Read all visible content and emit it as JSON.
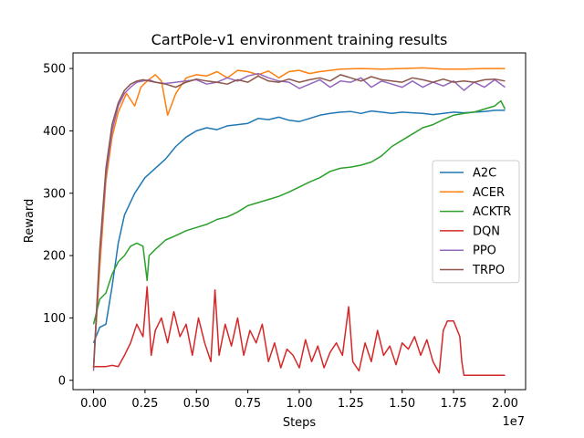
{
  "chart_data": {
    "type": "line",
    "title": "CartPole-v1 environment training results",
    "xlabel": "Steps",
    "ylabel": "Reward",
    "x_offset_label": "1e7",
    "xlim": [
      -1.0,
      21.0
    ],
    "ylim": [
      -15,
      525
    ],
    "x_unit": "millions of steps",
    "xticks": [
      0,
      2.5,
      5,
      7.5,
      10,
      12.5,
      15,
      17.5,
      20
    ],
    "xtick_labels": [
      "0.00",
      "0.25",
      "0.50",
      "0.75",
      "1.00",
      "1.25",
      "1.50",
      "1.75",
      "2.00"
    ],
    "yticks": [
      0,
      100,
      200,
      300,
      400,
      500
    ],
    "ytick_labels": [
      "0",
      "100",
      "200",
      "300",
      "400",
      "500"
    ],
    "legend_position": "center-right",
    "grid": false,
    "series": [
      {
        "name": "A2C",
        "color": "#1f77b4",
        "x": [
          0,
          0.3,
          0.6,
          0.9,
          1.2,
          1.5,
          2.0,
          2.5,
          3.0,
          3.5,
          4.0,
          4.5,
          5.0,
          5.5,
          6.0,
          6.5,
          7.0,
          7.5,
          8.0,
          8.5,
          9.0,
          9.5,
          10.0,
          10.5,
          11.0,
          11.5,
          12.0,
          12.5,
          13.0,
          13.5,
          14.0,
          14.5,
          15.0,
          15.5,
          16.0,
          16.5,
          17.0,
          17.5,
          18.0,
          18.5,
          19.0,
          19.5,
          20.0
        ],
        "y": [
          60,
          85,
          90,
          150,
          220,
          265,
          300,
          325,
          340,
          355,
          375,
          390,
          400,
          405,
          402,
          408,
          410,
          412,
          420,
          418,
          422,
          417,
          415,
          420,
          425,
          428,
          430,
          431,
          428,
          432,
          430,
          428,
          430,
          429,
          428,
          426,
          428,
          430,
          429,
          430,
          431,
          433,
          433
        ]
      },
      {
        "name": "ACER",
        "color": "#ff7f0e",
        "x": [
          0,
          0.3,
          0.6,
          0.9,
          1.2,
          1.6,
          2.0,
          2.3,
          2.6,
          3.0,
          3.3,
          3.6,
          4.0,
          4.5,
          5.0,
          5.5,
          6.0,
          6.5,
          7.0,
          7.5,
          8.0,
          8.5,
          9.0,
          9.5,
          10.0,
          10.5,
          11.0,
          11.5,
          12.0,
          13.0,
          14.0,
          15.0,
          16.0,
          17.0,
          18.0,
          19.0,
          20.0
        ],
        "y": [
          20,
          180,
          320,
          390,
          430,
          460,
          440,
          470,
          480,
          490,
          480,
          425,
          460,
          485,
          490,
          488,
          495,
          485,
          497,
          495,
          490,
          496,
          485,
          495,
          497,
          492,
          495,
          497,
          499,
          500,
          499,
          500,
          501,
          499,
          499,
          500,
          500
        ]
      },
      {
        "name": "ACKTR",
        "color": "#2ca02c",
        "x": [
          0,
          0.3,
          0.6,
          0.9,
          1.2,
          1.5,
          1.8,
          2.1,
          2.4,
          2.6,
          2.7,
          3.0,
          3.5,
          4.0,
          4.5,
          5.0,
          5.5,
          6.0,
          6.5,
          7.0,
          7.5,
          8.0,
          8.5,
          9.0,
          9.5,
          10.0,
          10.5,
          11.0,
          11.5,
          12.0,
          12.5,
          13.0,
          13.5,
          14.0,
          14.5,
          15.0,
          15.5,
          16.0,
          16.5,
          17.0,
          17.5,
          18.0,
          18.5,
          19.0,
          19.5,
          19.8,
          20.0
        ],
        "y": [
          90,
          130,
          140,
          170,
          190,
          200,
          215,
          220,
          215,
          160,
          200,
          210,
          225,
          232,
          240,
          245,
          250,
          258,
          262,
          270,
          280,
          285,
          290,
          295,
          302,
          310,
          318,
          325,
          335,
          340,
          342,
          345,
          350,
          360,
          375,
          385,
          395,
          405,
          410,
          418,
          425,
          428,
          430,
          435,
          440,
          448,
          435
        ]
      },
      {
        "name": "DQN",
        "color": "#d62728",
        "x": [
          0,
          0.3,
          0.6,
          0.9,
          1.2,
          1.5,
          1.8,
          2.1,
          2.4,
          2.6,
          2.8,
          3.0,
          3.3,
          3.6,
          3.9,
          4.2,
          4.5,
          4.8,
          5.1,
          5.4,
          5.7,
          5.9,
          6.1,
          6.4,
          6.7,
          7.0,
          7.3,
          7.6,
          7.9,
          8.2,
          8.5,
          8.8,
          9.1,
          9.4,
          9.7,
          10.0,
          10.3,
          10.6,
          10.9,
          11.2,
          11.5,
          11.8,
          12.1,
          12.4,
          12.6,
          12.9,
          13.2,
          13.5,
          13.8,
          14.1,
          14.4,
          14.7,
          15.0,
          15.3,
          15.6,
          15.9,
          16.2,
          16.5,
          16.8,
          17.0,
          17.2,
          17.5,
          17.8,
          17.9,
          18.0,
          18.3,
          18.6,
          18.9,
          19.2,
          19.5,
          19.8,
          20.0
        ],
        "y": [
          22,
          22,
          22,
          24,
          22,
          40,
          60,
          90,
          70,
          150,
          40,
          80,
          100,
          60,
          110,
          70,
          90,
          40,
          100,
          60,
          30,
          145,
          40,
          90,
          55,
          100,
          40,
          80,
          60,
          90,
          30,
          60,
          20,
          50,
          40,
          20,
          65,
          30,
          55,
          20,
          45,
          60,
          40,
          118,
          30,
          15,
          60,
          30,
          80,
          40,
          55,
          25,
          60,
          50,
          70,
          40,
          65,
          30,
          12,
          80,
          95,
          95,
          70,
          30,
          8,
          8,
          8,
          8,
          8,
          8,
          8,
          8
        ]
      },
      {
        "name": "PPO",
        "color": "#9467bd",
        "x": [
          0,
          0.3,
          0.6,
          0.9,
          1.2,
          1.5,
          1.8,
          2.1,
          2.4,
          2.7,
          3.0,
          3.5,
          4.0,
          4.5,
          5.0,
          5.5,
          6.0,
          6.5,
          7.0,
          7.5,
          8.0,
          8.5,
          9.0,
          9.5,
          10.0,
          10.5,
          11.0,
          11.5,
          12.0,
          12.5,
          13.0,
          13.5,
          14.0,
          14.5,
          15.0,
          15.5,
          16.0,
          16.5,
          17.0,
          17.5,
          18.0,
          18.5,
          19.0,
          19.5,
          20.0
        ],
        "y": [
          15,
          200,
          330,
          400,
          440,
          460,
          470,
          478,
          480,
          482,
          478,
          476,
          478,
          480,
          482,
          475,
          478,
          485,
          480,
          488,
          492,
          485,
          480,
          478,
          468,
          475,
          482,
          470,
          480,
          478,
          485,
          470,
          480,
          475,
          470,
          480,
          470,
          478,
          472,
          480,
          465,
          478,
          470,
          482,
          470
        ]
      },
      {
        "name": "TRPO",
        "color": "#8c564b",
        "x": [
          0,
          0.3,
          0.6,
          0.9,
          1.2,
          1.5,
          1.8,
          2.1,
          2.4,
          2.7,
          3.0,
          3.5,
          4.0,
          4.5,
          5.0,
          5.5,
          6.0,
          6.5,
          7.0,
          7.5,
          8.0,
          8.5,
          9.0,
          9.5,
          10.0,
          10.5,
          11.0,
          11.5,
          12.0,
          12.5,
          13.0,
          13.5,
          14.0,
          14.5,
          15.0,
          15.5,
          16.0,
          16.5,
          17.0,
          17.5,
          18.0,
          18.5,
          19.0,
          19.5,
          20.0
        ],
        "y": [
          20,
          210,
          340,
          410,
          445,
          465,
          475,
          480,
          482,
          480,
          478,
          475,
          470,
          478,
          483,
          480,
          478,
          475,
          482,
          478,
          488,
          480,
          478,
          483,
          478,
          482,
          485,
          480,
          490,
          485,
          480,
          487,
          482,
          480,
          478,
          485,
          482,
          478,
          483,
          478,
          480,
          478,
          482,
          483,
          480
        ]
      }
    ]
  }
}
